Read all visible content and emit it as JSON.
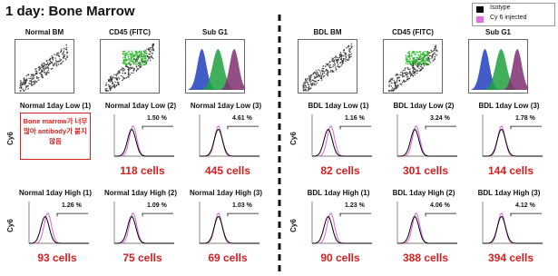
{
  "title": "1 day: Bone Marrow",
  "legend": [
    {
      "label": "Isotype",
      "color": "#000000"
    },
    {
      "label": "Cy 6 injected",
      "color": "#e070e0"
    }
  ],
  "panels": [
    {
      "top_plots": [
        "Normal BM",
        "CD45 (FITC)",
        "Sub G1"
      ],
      "rows": [
        {
          "y_label": "Cy6",
          "cells": [
            {
              "label": "Normal 1day Low (1)",
              "note": "Bone marrow가 너무 많아 antibody가 붙지 않음"
            },
            {
              "label": "Normal 1day Low (2)",
              "percent": "1.50 %",
              "count": "118 cells"
            },
            {
              "label": "Normal 1day Low (3)",
              "percent": "4.61 %",
              "count": "445 cells"
            }
          ]
        },
        {
          "y_label": "Cy6",
          "cells": [
            {
              "label": "Normal 1day High (1)",
              "percent": "1.26 %",
              "count": "93 cells"
            },
            {
              "label": "Normal 1day High (2)",
              "percent": "1.09 %",
              "count": "75 cells"
            },
            {
              "label": "Normal 1day High (3)",
              "percent": "1.03 %",
              "count": "69 cells"
            }
          ]
        }
      ]
    },
    {
      "top_plots": [
        "BDL BM",
        "CD45 (FITC)",
        "Sub G1"
      ],
      "rows": [
        {
          "y_label": "Cy6",
          "cells": [
            {
              "label": "BDL 1day Low (1)",
              "percent": "1.16 %",
              "count": "82 cells"
            },
            {
              "label": "BDL 1day Low (2)",
              "percent": "3.24 %",
              "count": "301 cells"
            },
            {
              "label": "BDL 1day Low (3)",
              "percent": "1.78 %",
              "count": "144 cells"
            }
          ]
        },
        {
          "y_label": "Cy6",
          "cells": [
            {
              "label": "BDL 1day High (1)",
              "percent": "1.23 %",
              "count": "90 cells"
            },
            {
              "label": "BDL 1day High (2)",
              "percent": "4.06 %",
              "count": "388 cells"
            },
            {
              "label": "BDL 1day High (3)",
              "percent": "4.12 %",
              "count": "394 cells"
            }
          ]
        }
      ]
    }
  ]
}
